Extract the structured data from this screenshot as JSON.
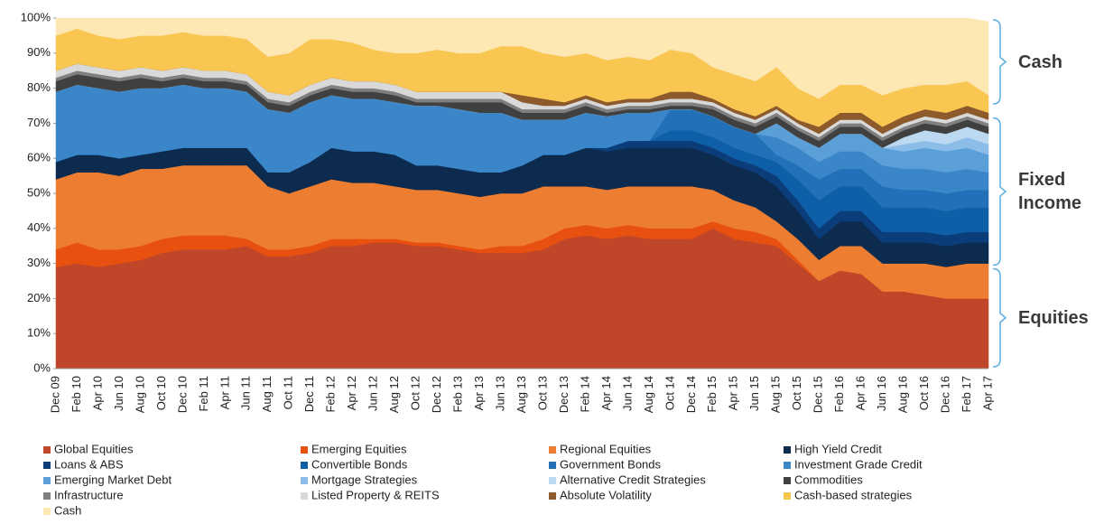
{
  "chart_data": {
    "type": "stacked_area",
    "categories": [
      "Dec 09",
      "Feb 10",
      "Apr 10",
      "Jun 10",
      "Aug 10",
      "Oct 10",
      "Dec 10",
      "Feb 11",
      "Apr 11",
      "Jun 11",
      "Aug 11",
      "Oct 11",
      "Dec 11",
      "Feb 12",
      "Apr 12",
      "Jun 12",
      "Aug 12",
      "Oct 12",
      "Dec 12",
      "Feb 13",
      "Apr 13",
      "Jun 13",
      "Aug 13",
      "Oct 13",
      "Dec 13",
      "Feb 14",
      "Apr 14",
      "Jun 14",
      "Aug 14",
      "Oct 14",
      "Dec 14",
      "Feb 15",
      "Apr 15",
      "Jun 15",
      "Aug 15",
      "Oct 15",
      "Dec 15",
      "Feb 16",
      "Apr 16",
      "Jun 16",
      "Aug 16",
      "Oct 16",
      "Dec 16",
      "Feb 17",
      "Apr 17"
    ],
    "series": [
      {
        "name": "Global Equities",
        "color": "#c0462a",
        "values": [
          29,
          30,
          29,
          30,
          31,
          33,
          34,
          34,
          34,
          35,
          32,
          32,
          33,
          35,
          35,
          36,
          36,
          35,
          35,
          34,
          33,
          33,
          33,
          34,
          37,
          38,
          37,
          38,
          37,
          37,
          37,
          40,
          37,
          36,
          35,
          30,
          25,
          28,
          27,
          22,
          22,
          21,
          20,
          20,
          20
        ]
      },
      {
        "name": "Emerging Equities",
        "color": "#e8500f",
        "values": [
          5,
          6,
          5,
          4,
          4,
          4,
          4,
          4,
          4,
          2,
          2,
          2,
          2,
          2,
          2,
          1,
          1,
          1,
          1,
          1,
          1,
          2,
          2,
          3,
          3,
          3,
          3,
          3,
          3,
          3,
          3,
          2,
          3,
          3,
          2,
          1,
          0,
          0,
          0,
          0,
          0,
          0,
          0,
          0,
          0
        ]
      },
      {
        "name": "Regional Equities",
        "color": "#ed7d31",
        "values": [
          20,
          20,
          22,
          21,
          22,
          20,
          20,
          20,
          20,
          21,
          18,
          16,
          17,
          17,
          16,
          16,
          15,
          15,
          15,
          15,
          15,
          15,
          15,
          15,
          12,
          11,
          11,
          11,
          12,
          12,
          12,
          9,
          8,
          7,
          5,
          6,
          6,
          7,
          8,
          8,
          8,
          9,
          9,
          10,
          10
        ]
      },
      {
        "name": "High Yield Credit",
        "color": "#0d2b4e",
        "values": [
          5,
          5,
          5,
          5,
          4,
          5,
          5,
          5,
          5,
          5,
          4,
          6,
          7,
          9,
          9,
          9,
          9,
          7,
          7,
          7,
          7,
          6,
          8,
          9,
          9,
          11,
          11,
          11,
          11,
          11,
          11,
          10,
          10,
          10,
          10,
          8,
          6,
          7,
          7,
          6,
          6,
          6,
          6,
          6,
          6
        ]
      },
      {
        "name": "Loans & ABS",
        "color": "#0a3d7a",
        "values": [
          0,
          0,
          0,
          0,
          0,
          0,
          0,
          0,
          0,
          0,
          0,
          0,
          0,
          0,
          0,
          0,
          0,
          0,
          0,
          0,
          0,
          0,
          0,
          0,
          0,
          0,
          1,
          2,
          2,
          2,
          2,
          2,
          2,
          2,
          3,
          3,
          3,
          3,
          3,
          3,
          3,
          3,
          3,
          3,
          3
        ]
      },
      {
        "name": "Convertible Bonds",
        "color": "#0f5ea8",
        "values": [
          0,
          0,
          0,
          0,
          0,
          0,
          0,
          0,
          0,
          0,
          0,
          0,
          0,
          0,
          0,
          0,
          0,
          0,
          0,
          0,
          0,
          0,
          0,
          0,
          0,
          0,
          0,
          0,
          0,
          3,
          3,
          3,
          3,
          3,
          4,
          6,
          8,
          7,
          7,
          7,
          7,
          7,
          7,
          7,
          7
        ]
      },
      {
        "name": "Government Bonds",
        "color": "#2270b8",
        "values": [
          0,
          0,
          0,
          0,
          0,
          0,
          0,
          0,
          0,
          0,
          0,
          0,
          0,
          0,
          0,
          0,
          0,
          0,
          0,
          0,
          0,
          0,
          0,
          0,
          0,
          0,
          0,
          0,
          0,
          6,
          6,
          6,
          6,
          6,
          2,
          4,
          6,
          5,
          5,
          6,
          5,
          5,
          5,
          5,
          5
        ]
      },
      {
        "name": "Investment Grade Credit",
        "color": "#3a86c8",
        "values": [
          20,
          20,
          19,
          19,
          19,
          18,
          18,
          17,
          17,
          16,
          18,
          17,
          17,
          15,
          15,
          15,
          15,
          17,
          17,
          17,
          17,
          17,
          13,
          10,
          10,
          10,
          9,
          8,
          8,
          0,
          0,
          0,
          0,
          0,
          5,
          5,
          5,
          5,
          5,
          6,
          6,
          6,
          6,
          6,
          5
        ]
      },
      {
        "name": "Emerging Market Debt",
        "color": "#5a9fd8",
        "values": [
          0,
          0,
          0,
          0,
          0,
          0,
          0,
          0,
          0,
          0,
          0,
          0,
          0,
          0,
          0,
          0,
          0,
          0,
          0,
          0,
          0,
          0,
          0,
          0,
          0,
          0,
          0,
          0,
          0,
          0,
          0,
          0,
          0,
          0,
          4,
          3,
          4,
          5,
          5,
          5,
          5,
          6,
          6,
          6,
          5
        ]
      },
      {
        "name": "Mortgage Strategies",
        "color": "#8cbde8",
        "values": [
          0,
          0,
          0,
          0,
          0,
          0,
          0,
          0,
          0,
          0,
          0,
          0,
          0,
          0,
          0,
          0,
          0,
          0,
          0,
          0,
          0,
          0,
          0,
          0,
          0,
          0,
          0,
          0,
          0,
          0,
          0,
          0,
          0,
          0,
          0,
          0,
          0,
          0,
          0,
          0,
          2,
          2,
          2,
          3,
          3
        ]
      },
      {
        "name": "Alternative Credit Strategies",
        "color": "#bcd9f1",
        "values": [
          0,
          0,
          0,
          0,
          0,
          0,
          0,
          0,
          0,
          0,
          0,
          0,
          0,
          0,
          0,
          0,
          0,
          0,
          0,
          0,
          0,
          0,
          0,
          0,
          0,
          0,
          0,
          0,
          0,
          0,
          0,
          0,
          0,
          0,
          0,
          0,
          0,
          0,
          0,
          0,
          2,
          3,
          3,
          3,
          3
        ]
      },
      {
        "name": "Commodities",
        "color": "#404040",
        "values": [
          3,
          3,
          3,
          3,
          3,
          2,
          2,
          2,
          2,
          2,
          2,
          2,
          2,
          2,
          2,
          2,
          2,
          1,
          1,
          2,
          3,
          3,
          2,
          2,
          2,
          2,
          1,
          1,
          1,
          1,
          1,
          2,
          2,
          2,
          2,
          2,
          2,
          2,
          2,
          2,
          2,
          2,
          2,
          2,
          2
        ]
      },
      {
        "name": "Infrastructure",
        "color": "#7f7f7f",
        "values": [
          1,
          1,
          1,
          1,
          1,
          1,
          1,
          1,
          1,
          1,
          1,
          1,
          1,
          1,
          1,
          1,
          1,
          1,
          1,
          1,
          1,
          1,
          1,
          1,
          1,
          1,
          1,
          1,
          1,
          1,
          1,
          1,
          1,
          1,
          1,
          1,
          1,
          1,
          1,
          1,
          1,
          1,
          1,
          1,
          1
        ]
      },
      {
        "name": "Listed Property & REITS",
        "color": "#d9d9d9",
        "values": [
          2,
          2,
          2,
          2,
          2,
          2,
          2,
          2,
          2,
          2,
          2,
          2,
          2,
          2,
          2,
          2,
          2,
          2,
          2,
          2,
          2,
          2,
          2,
          1,
          1,
          1,
          1,
          1,
          1,
          1,
          1,
          1,
          1,
          1,
          1,
          1,
          1,
          1,
          1,
          1,
          1,
          1,
          1,
          1,
          1
        ]
      },
      {
        "name": "Absolute Volatility",
        "color": "#8c5a2b",
        "values": [
          0,
          0,
          0,
          0,
          0,
          0,
          0,
          0,
          0,
          0,
          0,
          0,
          0,
          0,
          0,
          0,
          0,
          0,
          0,
          0,
          0,
          0,
          2,
          2,
          1,
          1,
          1,
          1,
          1,
          2,
          2,
          1,
          1,
          1,
          1,
          1,
          2,
          2,
          2,
          2,
          2,
          2,
          2,
          2,
          2
        ]
      },
      {
        "name": "Cash-based strategies",
        "color": "#f9c652",
        "values": [
          10,
          10,
          9,
          9,
          9,
          10,
          10,
          10,
          10,
          10,
          10,
          12,
          13,
          11,
          11,
          9,
          9,
          11,
          12,
          11,
          11,
          13,
          14,
          13,
          13,
          12,
          12,
          12,
          11,
          12,
          11,
          9,
          10,
          10,
          11,
          9,
          8,
          8,
          8,
          9,
          8,
          7,
          8,
          7,
          5
        ]
      },
      {
        "name": "Cash",
        "color": "#fde7b3",
        "values": [
          5,
          3,
          5,
          6,
          5,
          5,
          4,
          5,
          5,
          6,
          11,
          10,
          6,
          6,
          7,
          9,
          10,
          10,
          9,
          10,
          10,
          8,
          8,
          10,
          11,
          10,
          12,
          11,
          12,
          9,
          10,
          14,
          16,
          18,
          14,
          20,
          23,
          19,
          19,
          22,
          20,
          19,
          19,
          18,
          21
        ]
      }
    ],
    "ylim": [
      0,
      100
    ],
    "yticks": [
      {
        "value": 0,
        "label": "0%"
      },
      {
        "value": 10,
        "label": "10%"
      },
      {
        "value": 20,
        "label": "20%"
      },
      {
        "value": 30,
        "label": "30%"
      },
      {
        "value": 40,
        "label": "40%"
      },
      {
        "value": 50,
        "label": "50%"
      },
      {
        "value": 60,
        "label": "60%"
      },
      {
        "value": 70,
        "label": "70%"
      },
      {
        "value": 80,
        "label": "80%"
      },
      {
        "value": 90,
        "label": "90%"
      },
      {
        "value": 100,
        "label": "100%"
      }
    ],
    "brackets": [
      {
        "label": "Cash",
        "range": [
          75,
          100
        ]
      },
      {
        "label": "Fixed Income",
        "range": [
          29,
          72
        ]
      },
      {
        "label": "Equities",
        "range": [
          0,
          29
        ]
      }
    ],
    "bracket_color": "#5aaee0"
  }
}
